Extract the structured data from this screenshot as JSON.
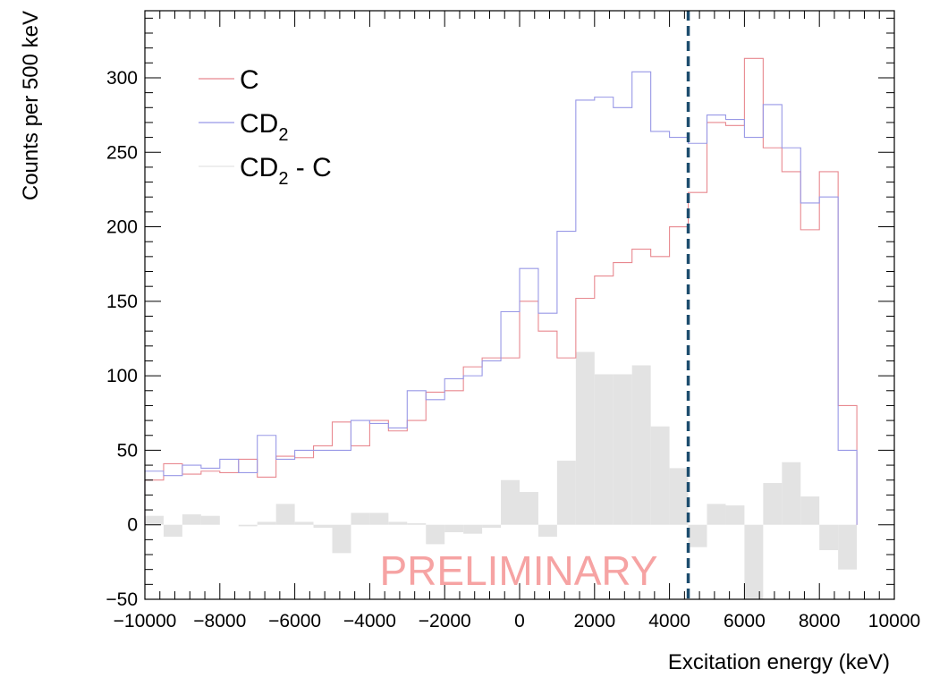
{
  "chart_data": {
    "type": "line",
    "title": "",
    "xlabel": "Excitation energy (keV)",
    "ylabel": "Counts per 500 keV",
    "xlim": [
      -10000,
      10000
    ],
    "ylim": [
      -50,
      345
    ],
    "x_ticks": [
      -10000,
      -8000,
      -6000,
      -4000,
      -2000,
      0,
      2000,
      4000,
      6000,
      8000,
      10000
    ],
    "y_ticks": [
      -50,
      0,
      50,
      100,
      150,
      200,
      250,
      300
    ],
    "x_tick_labels": [
      "−10000",
      "−8000",
      "−6000",
      "−4000",
      "−2000",
      "0",
      "2000",
      "4000",
      "6000",
      "8000",
      "10000"
    ],
    "y_tick_labels": [
      "−50",
      "0",
      "50",
      "100",
      "150",
      "200",
      "250",
      "300"
    ],
    "bin_edges": [
      -10000,
      -9500,
      -9000,
      -8500,
      -8000,
      -7500,
      -7000,
      -6500,
      -6000,
      -5500,
      -5000,
      -4500,
      -4000,
      -3500,
      -3000,
      -2500,
      -2000,
      -1500,
      -1000,
      -500,
      0,
      500,
      1000,
      1500,
      2000,
      2500,
      3000,
      3500,
      4000,
      4500,
      5000,
      5500,
      6000,
      6500,
      7000,
      7500,
      8000,
      8500,
      9000
    ],
    "series": [
      {
        "name": "C",
        "color": "#e8888f",
        "style": "step",
        "values": [
          30,
          41,
          34,
          36,
          35,
          44,
          32,
          46,
          45,
          53,
          69,
          53,
          70,
          63,
          70,
          89,
          90,
          106,
          112,
          112,
          150,
          130,
          112,
          152,
          167,
          176,
          185,
          180,
          200,
          223,
          270,
          268,
          313,
          253,
          237,
          198,
          237,
          80
        ]
      },
      {
        "name": "CD",
        "name_subscript": "2",
        "color": "#9898e6",
        "style": "step",
        "values": [
          36,
          33,
          40,
          38,
          44,
          35,
          60,
          44,
          50,
          50,
          50,
          70,
          68,
          65,
          90,
          84,
          98,
          100,
          110,
          143,
          172,
          142,
          197,
          285,
          287,
          280,
          304,
          264,
          260,
          256,
          275,
          272,
          260,
          282,
          253,
          216,
          220,
          50
        ]
      },
      {
        "name": "CD - C",
        "name_subscript": "2",
        "color": "#e3e3e3",
        "style": "filled-step",
        "values": [
          6,
          -8,
          7,
          6,
          0,
          -1,
          2,
          14,
          2,
          -2,
          -19,
          8,
          8,
          2,
          1,
          -13,
          -5,
          -6,
          -2,
          30,
          22,
          -8,
          43,
          116,
          101,
          101,
          107,
          66,
          38,
          -15,
          14,
          13,
          -60,
          28,
          42,
          19,
          -17,
          -30
        ]
      }
    ],
    "vertical_line": {
      "x": 4500,
      "color": "#1d4d6e",
      "style": "dashed"
    },
    "legend_placement": "top-left",
    "grid": false,
    "watermark": "PRELIMINARY"
  }
}
